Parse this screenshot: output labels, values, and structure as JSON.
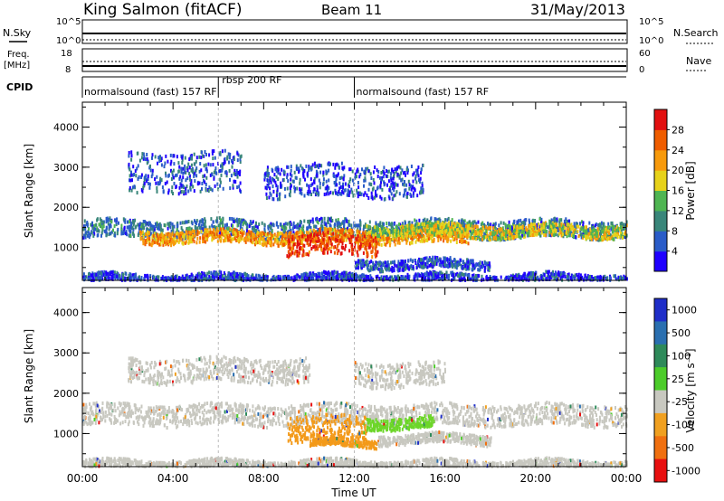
{
  "header": {
    "station": "King Salmon (fitACF)",
    "beam": "Beam 11",
    "date": "31/May/2013"
  },
  "strip": {
    "nsky_label": "N.Sky",
    "nsearch_label": "N.Search",
    "freq_label_1": "Freq.",
    "freq_label_2": "[MHz]",
    "nave_label": "Nave",
    "cpid_label": "CPID",
    "noise_ticks_left": [
      "10^5",
      "10^0"
    ],
    "noise_ticks_right": [
      "10^5",
      "10^0"
    ],
    "freq_ticks": [
      "18",
      "8"
    ],
    "nave_ticks": [
      "60",
      "0"
    ],
    "cpid_segments": [
      {
        "label": "normalsound (fast) 157 RF",
        "start": 0.0,
        "end": 6.0
      },
      {
        "label": "rbsp 200 RF",
        "start": 6.0,
        "end": 12.0
      },
      {
        "label": "normalsound (fast) 157 RF",
        "start": 12.0,
        "end": 24.0
      }
    ]
  },
  "chart_data": [
    {
      "type": "heatmap",
      "name": "power",
      "xlabel": "Time UT",
      "ylabel": "Slant Range [km]",
      "xlim": [
        0,
        24
      ],
      "ylim": [
        180,
        4620
      ],
      "yticks": [
        1000,
        2000,
        3000,
        4000
      ],
      "colorbar": {
        "label": "Power [dB]",
        "ticks": [
          "4",
          "8",
          "12",
          "16",
          "20",
          "24",
          "28"
        ],
        "range": [
          0,
          32
        ],
        "colors": [
          "#1f00ff",
          "#2a5cc8",
          "#39867a",
          "#4fb552",
          "#e7d21a",
          "#f79a0c",
          "#ef5d00",
          "#e21010"
        ]
      },
      "bands": [
        {
          "t0": 0.0,
          "t1": 24.0,
          "r_center": 1500,
          "r_width": 220,
          "level": 8
        },
        {
          "t0": 2.5,
          "t1": 17.0,
          "r_center": 1300,
          "r_width": 160,
          "level": 22
        },
        {
          "t0": 9.0,
          "t1": 13.0,
          "r_center": 1100,
          "r_width": 260,
          "level": 28
        },
        {
          "t0": 12.5,
          "t1": 16.0,
          "r_center": 1500,
          "r_width": 120,
          "level": 14
        },
        {
          "t0": 14.0,
          "t1": 24.0,
          "r_center": 1450,
          "r_width": 160,
          "level": 18
        },
        {
          "t0": 2.0,
          "t1": 7.0,
          "r_center": 2900,
          "r_width": 500,
          "level": 6
        },
        {
          "t0": 8.0,
          "t1": 15.0,
          "r_center": 2700,
          "r_width": 400,
          "level": 5
        },
        {
          "t0": 0.0,
          "t1": 24.0,
          "r_center": 280,
          "r_width": 100,
          "level": 5
        },
        {
          "t0": 12.0,
          "t1": 18.0,
          "r_center": 620,
          "r_width": 120,
          "level": 6
        }
      ]
    },
    {
      "type": "heatmap",
      "name": "velocity",
      "xlabel": "Time UT",
      "ylabel": "Slant Range [km]",
      "xlim": [
        0,
        24
      ],
      "ylim": [
        180,
        4620
      ],
      "xticks": [
        "00:00",
        "04:00",
        "08:00",
        "12:00",
        "16:00",
        "20:00",
        "00:00"
      ],
      "yticks": [
        1000,
        2000,
        3000,
        4000
      ],
      "colorbar": {
        "label": "Velocity [m s⁻¹]",
        "ticks": [
          "1000",
          "500",
          "100",
          "25",
          "-25",
          "-100",
          "-500",
          "-1000"
        ],
        "colors": [
          "#1f2ec8",
          "#2a6fb0",
          "#2e8a5a",
          "#4ccc2a",
          "#c8c8c0",
          "#f0a020",
          "#f07010",
          "#e81010"
        ]
      },
      "bands": [
        {
          "t0": 0.0,
          "t1": 24.0,
          "r_center": 1500,
          "r_width": 260,
          "level": "gray"
        },
        {
          "t0": 9.0,
          "t1": 12.5,
          "r_center": 1150,
          "r_width": 320,
          "level": "orange"
        },
        {
          "t0": 12.5,
          "t1": 15.5,
          "r_center": 1300,
          "r_width": 140,
          "level": "green"
        },
        {
          "t0": 10.0,
          "t1": 13.0,
          "r_center": 800,
          "r_width": 90,
          "level": "orange"
        },
        {
          "t0": 13.0,
          "t1": 18.0,
          "r_center": 900,
          "r_width": 120,
          "level": "gray"
        },
        {
          "t0": 2.0,
          "t1": 10.0,
          "r_center": 2600,
          "r_width": 300,
          "level": "gray"
        },
        {
          "t0": 12.0,
          "t1": 16.0,
          "r_center": 2500,
          "r_width": 300,
          "level": "gray"
        },
        {
          "t0": 0.0,
          "t1": 24.0,
          "r_center": 280,
          "r_width": 100,
          "level": "gray"
        }
      ]
    }
  ]
}
